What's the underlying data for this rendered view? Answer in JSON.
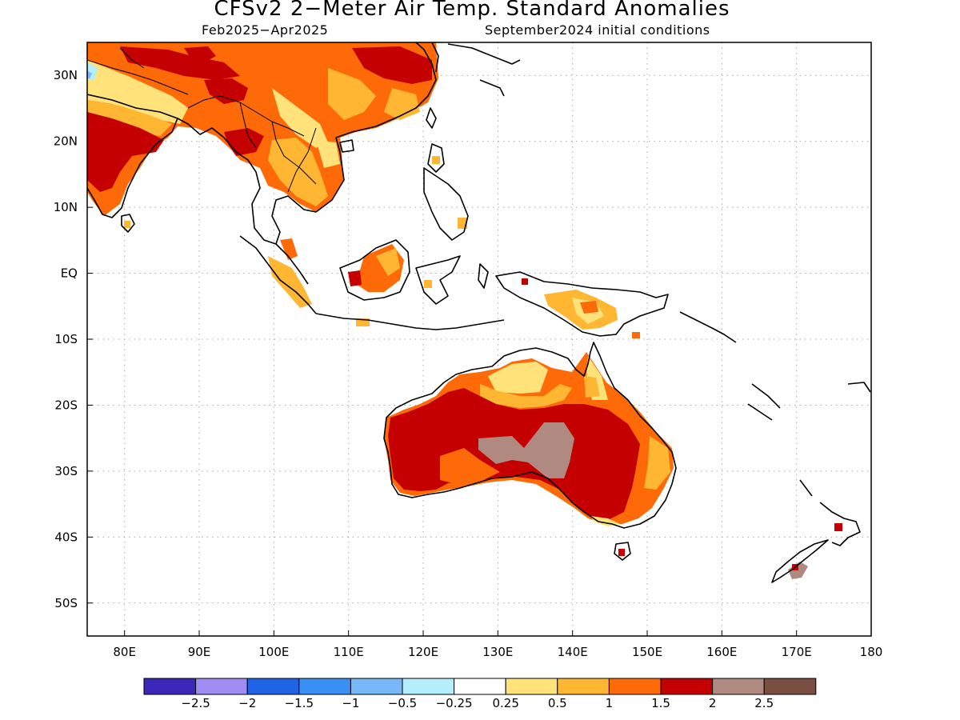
{
  "header": {
    "title": "CFSv2 2−Meter Air Temp. Standard Anomalies",
    "period": "Feb2025−Apr2025",
    "initial_conditions": "September2024 initial conditions"
  },
  "map": {
    "lon_range": [
      75,
      180
    ],
    "lat_range": [
      -55,
      35
    ],
    "grid": "dotted",
    "lat_ticks": [
      {
        "lat": 30,
        "label": "30N"
      },
      {
        "lat": 20,
        "label": "20N"
      },
      {
        "lat": 10,
        "label": "10N"
      },
      {
        "lat": 0,
        "label": "EQ"
      },
      {
        "lat": -10,
        "label": "10S"
      },
      {
        "lat": -20,
        "label": "20S"
      },
      {
        "lat": -30,
        "label": "30S"
      },
      {
        "lat": -40,
        "label": "40S"
      },
      {
        "lat": -50,
        "label": "50S"
      }
    ],
    "lon_ticks": [
      {
        "lon": 80,
        "label": "80E"
      },
      {
        "lon": 90,
        "label": "90E"
      },
      {
        "lon": 100,
        "label": "100E"
      },
      {
        "lon": 110,
        "label": "110E"
      },
      {
        "lon": 120,
        "label": "120E"
      },
      {
        "lon": 130,
        "label": "130E"
      },
      {
        "lon": 140,
        "label": "140E"
      },
      {
        "lon": 150,
        "label": "150E"
      },
      {
        "lon": 160,
        "label": "160E"
      },
      {
        "lon": 170,
        "label": "170E"
      },
      {
        "lon": 180,
        "label": "180"
      }
    ]
  },
  "colorbar": {
    "colors": [
      "#3b28b8",
      "#9f8cf5",
      "#1f64e6",
      "#3a8ff2",
      "#78b8f8",
      "#b4eefc",
      "#ffffff",
      "#ffe27a",
      "#ffb733",
      "#ff6a08",
      "#c40000",
      "#b08a80",
      "#7a4e40"
    ],
    "labels": [
      "−2.5",
      "−2",
      "−1.5",
      "−1",
      "−0.5",
      "−0.25",
      "0.25",
      "0.5",
      "1",
      "1.5",
      "2",
      "2.5"
    ]
  }
}
